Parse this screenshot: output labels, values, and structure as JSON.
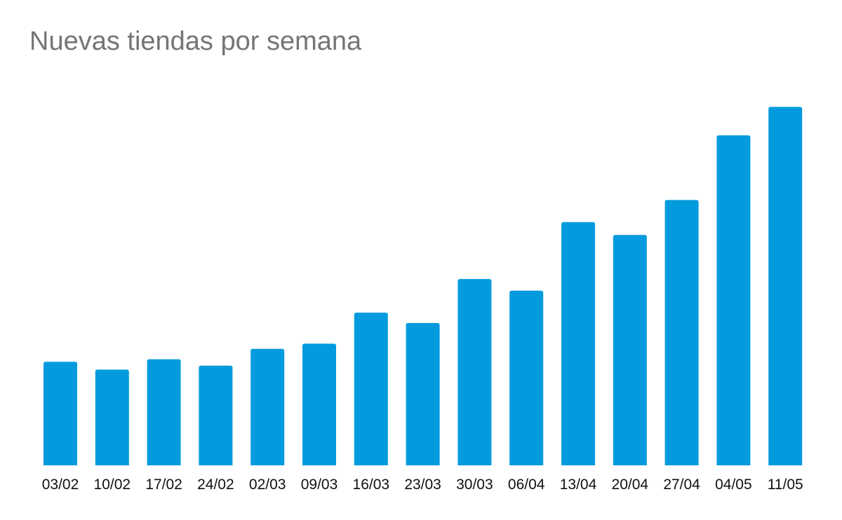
{
  "chart_data": {
    "type": "bar",
    "title": "Nuevas tiendas por semana",
    "xlabel": "",
    "ylabel": "",
    "categories": [
      "03/02",
      "10/02",
      "17/02",
      "24/02",
      "02/03",
      "09/03",
      "16/03",
      "23/03",
      "30/03",
      "06/04",
      "13/04",
      "20/04",
      "27/04",
      "04/05",
      "11/05"
    ],
    "values": [
      160,
      148,
      164,
      154,
      180,
      188,
      236,
      220,
      288,
      270,
      376,
      356,
      410,
      510,
      554
    ],
    "ylim": [
      0,
      600
    ],
    "grid": false,
    "legend": "none",
    "bar_color": "#039BDE"
  }
}
